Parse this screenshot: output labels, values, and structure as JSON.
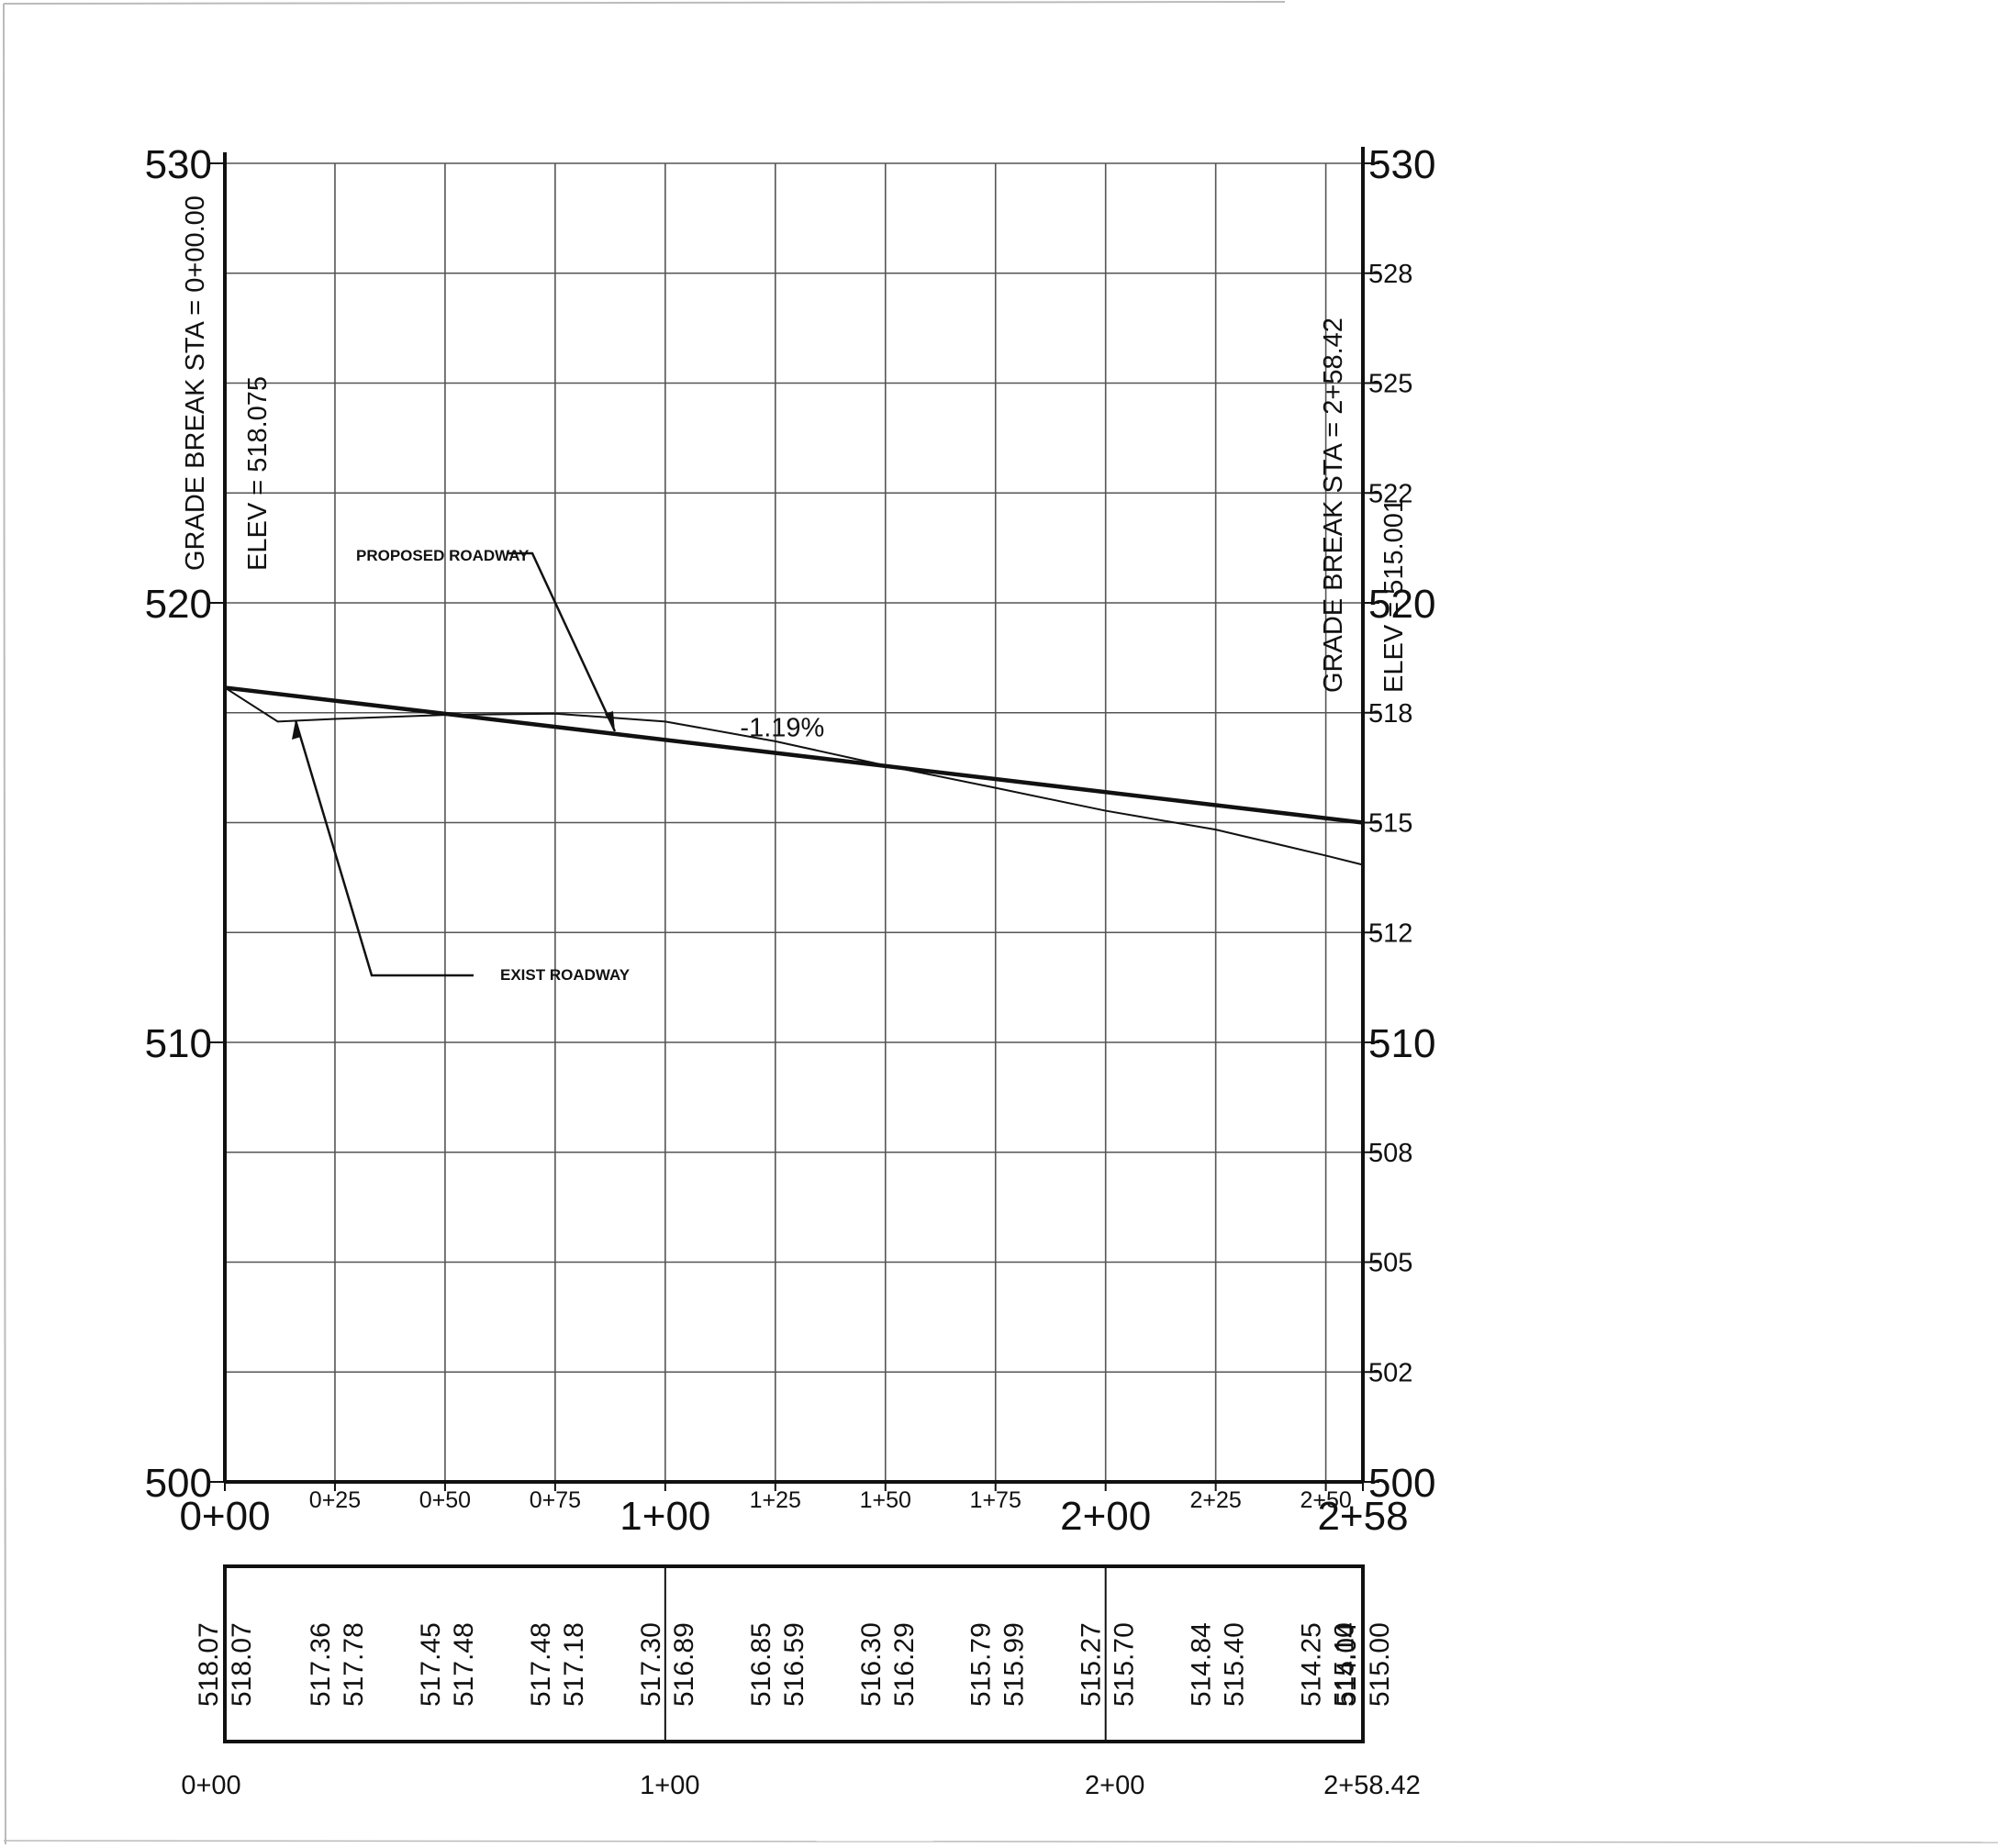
{
  "chart_data": {
    "type": "line",
    "x_axis": {
      "ticks": [
        0,
        25,
        50,
        75,
        100,
        125,
        150,
        175,
        200,
        225,
        250,
        258.42
      ],
      "tick_labels": [
        "0+00",
        "0+25",
        "0+50",
        "0+75",
        "1+00",
        "1+25",
        "1+50",
        "1+75",
        "2+00",
        "2+25",
        "2+50",
        "2+58"
      ],
      "range": [
        0,
        258.42
      ]
    },
    "y_axis": {
      "range": [
        500,
        530
      ],
      "left_ticks": [
        500,
        510,
        520,
        530
      ],
      "left_tick_labels": [
        "500",
        "510",
        "520",
        "530"
      ],
      "right_ticks": [
        500,
        502.5,
        505,
        507.5,
        510,
        512.5,
        515,
        517.5,
        520,
        522.5,
        525,
        527.5,
        530
      ],
      "right_tick_labels": [
        "500",
        "502",
        "505",
        "508",
        "510",
        "512",
        "515",
        "518",
        "520",
        "522",
        "525",
        "528",
        "530"
      ]
    },
    "grid": true,
    "series": [
      {
        "name": "PROPOSED ROADWAY",
        "x": [
          0,
          258.42
        ],
        "y": [
          518.07,
          515.0
        ]
      },
      {
        "name": "EXIST ROADWAY",
        "x": [
          0,
          12,
          25,
          50,
          75,
          100,
          125,
          150,
          175,
          200,
          225,
          250,
          258.42
        ],
        "y": [
          518.07,
          517.3,
          517.36,
          517.45,
          517.48,
          517.3,
          516.85,
          516.3,
          515.79,
          515.27,
          514.84,
          514.25,
          514.04
        ]
      }
    ],
    "annotations": {
      "slope_label": "-1.19%",
      "proposed_label": "PROPOSED ROADWAY",
      "exist_label": "EXIST ROADWAY",
      "grade_break_start": {
        "sta_text": "GRADE BREAK STA = 0+00.00",
        "elev_text": "ELEV = 518.075"
      },
      "grade_break_end": {
        "sta_text": "GRADE BREAK STA = 2+58.42",
        "elev_text": "ELEV = 515.001"
      }
    },
    "table": {
      "stations": [
        0,
        25,
        50,
        75,
        100,
        125,
        150,
        175,
        200,
        225,
        250,
        258.42
      ],
      "rows": [
        [
          "518.07",
          "518.07"
        ],
        [
          "517.36",
          "517.78"
        ],
        [
          "517.45",
          "517.48"
        ],
        [
          "517.48",
          "517.18"
        ],
        [
          "517.30",
          "516.89"
        ],
        [
          "516.85",
          "516.59"
        ],
        [
          "516.30",
          "516.29"
        ],
        [
          "515.79",
          "515.99"
        ],
        [
          "515.27",
          "515.70"
        ],
        [
          "514.84",
          "515.40"
        ],
        [
          "514.25",
          "515.10"
        ],
        [
          "514.04",
          "515.00"
        ]
      ],
      "bottom_labels": [
        "0+00",
        "1+00",
        "2+00",
        "2+58.42"
      ]
    }
  }
}
